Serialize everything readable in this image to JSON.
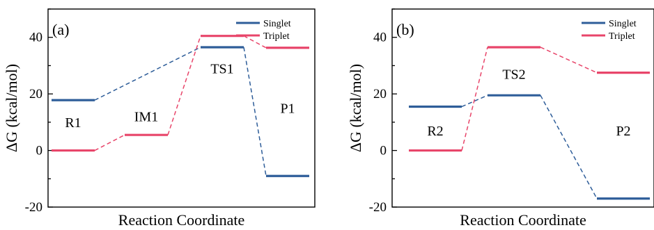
{
  "chart_data": [
    {
      "type": "line",
      "panel_label": "(a)",
      "xlabel": "Reaction Coordinate",
      "ylabel": "ΔG (kcal/mol)",
      "ylim": [
        -20,
        50
      ],
      "yticks": [
        -20,
        0,
        20,
        40
      ],
      "legend_position": "top-right",
      "levels_per_state": [
        "R1",
        "IM1",
        "TS1",
        "P1"
      ],
      "series": [
        {
          "name": "Singlet",
          "color": "#2e5d99",
          "values": [
            17.8,
            null,
            36.5,
            -9.0
          ]
        },
        {
          "name": "Triplet",
          "color": "#e8456a",
          "values": [
            0.0,
            5.5,
            40.5,
            36.3
          ]
        }
      ],
      "annotations": [
        {
          "text": "R1",
          "x": 0,
          "y": 10
        },
        {
          "text": "IM1",
          "x": 1,
          "y": 12
        },
        {
          "text": "TS1",
          "x": 2,
          "y": 29
        },
        {
          "text": "P1",
          "x": 3,
          "y": 15
        }
      ]
    },
    {
      "type": "line",
      "panel_label": "(b)",
      "xlabel": "Reaction Coordinate",
      "ylabel": "ΔG (kcal/mol)",
      "ylim": [
        -20,
        50
      ],
      "yticks": [
        -20,
        0,
        20,
        40
      ],
      "legend_position": "top-right",
      "levels_per_state": [
        "R2",
        "TS2",
        "P2"
      ],
      "series": [
        {
          "name": "Singlet",
          "color": "#2e5d99",
          "values": [
            15.5,
            19.5,
            -17.0
          ]
        },
        {
          "name": "Triplet",
          "color": "#e8456a",
          "values": [
            0.0,
            36.5,
            27.5
          ]
        }
      ],
      "annotations": [
        {
          "text": "R2",
          "x": 0,
          "y": 7
        },
        {
          "text": "TS2",
          "x": 1,
          "y": 27
        },
        {
          "text": "P2",
          "x": 2,
          "y": 7
        }
      ]
    }
  ]
}
